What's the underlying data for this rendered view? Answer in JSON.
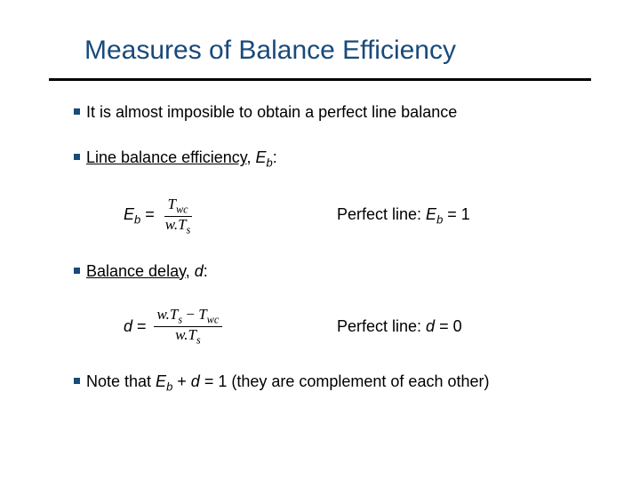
{
  "colors": {
    "title": "#194a7a",
    "bullet_marker": "#194a7a",
    "rule": "#000000",
    "text": "#000000",
    "background": "#ffffff"
  },
  "typography": {
    "title_fontsize": 30,
    "body_fontsize": 18,
    "formula_fontsize": 17,
    "font_family": "Arial"
  },
  "title": "Measures of Balance Efficiency",
  "bullets": {
    "b1": "It is almost imposible to obtain a perfect line balance",
    "b2_pre": "Line balance efficiency",
    "b2_var": "E",
    "b2_sub": "b",
    "b3_pre": "Balance delay",
    "b3_var": "d",
    "b4_pre": "Note that ",
    "b4_expr_E": "E",
    "b4_expr_b": "b",
    "b4_expr_plus": " + ",
    "b4_expr_d": "d",
    "b4_expr_eq": " = 1 (they are complement of each other)"
  },
  "eq1": {
    "lhs_E": "E",
    "lhs_b": "b",
    "eq": " = ",
    "num_T": "T",
    "num_wc": "wc",
    "den_w": "w",
    "den_dot": ".",
    "den_T": "T",
    "den_s": "s",
    "perfect_pre": "Perfect line: ",
    "perfect_E": "E",
    "perfect_b": "b",
    "perfect_post": " = 1"
  },
  "eq2": {
    "lhs_d": "d",
    "eq": " = ",
    "num_w": "w",
    "num_dot": ".",
    "num_T": "T",
    "num_s": "s",
    "num_minus": " − ",
    "num_T2": "T",
    "num_wc": "wc",
    "den_w": "w",
    "den_dot": ".",
    "den_T": "T",
    "den_s": "s",
    "perfect_pre": "Perfect line: ",
    "perfect_d": "d",
    "perfect_post": " = 0"
  }
}
